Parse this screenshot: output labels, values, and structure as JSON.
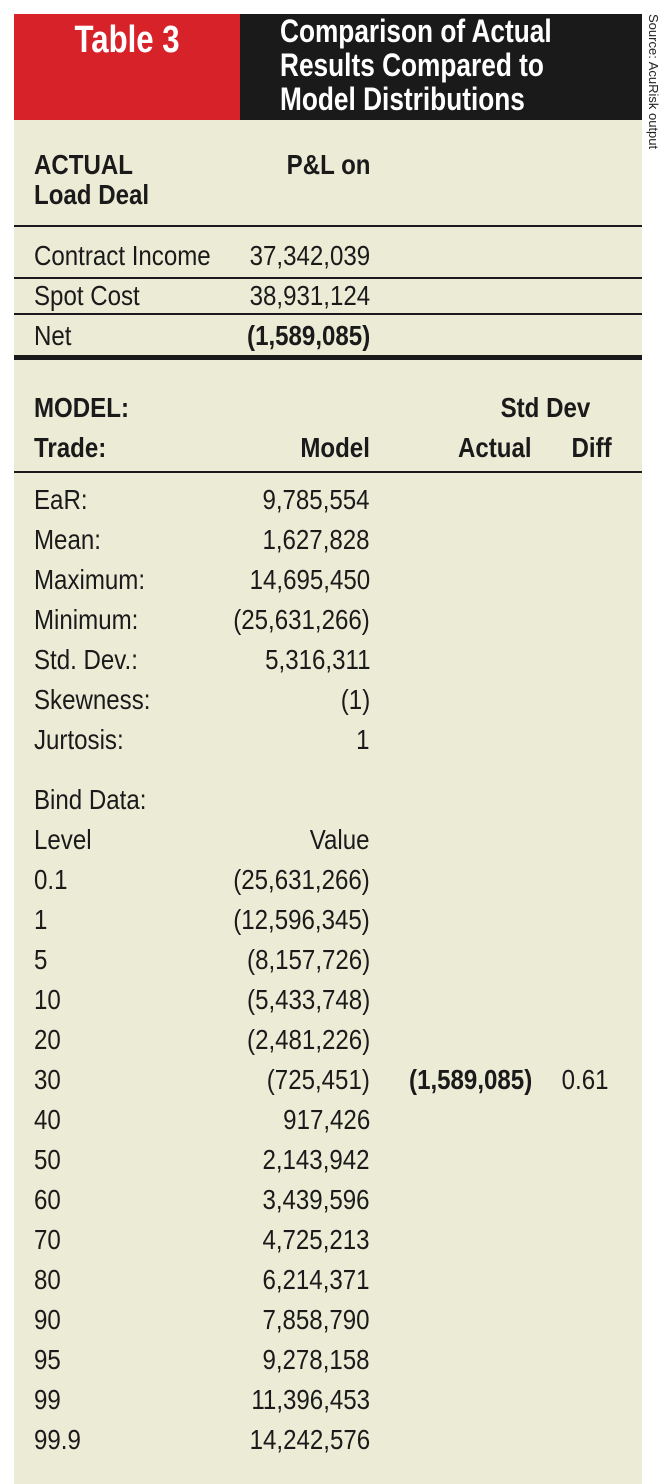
{
  "header": {
    "table_label": "Table 3",
    "title_lines": [
      "Comparison of Actual",
      "Results Compared to",
      "Model Distributions"
    ]
  },
  "source": "Source: AcuRisk output",
  "actual_section": {
    "heading_line1": "ACTUAL",
    "heading_line2": "Load Deal",
    "column_header": "P&L on",
    "rows": [
      {
        "label": "Contract Income",
        "value": "37,342,039"
      },
      {
        "label": "Spot Cost",
        "value": "38,931,124"
      },
      {
        "label": "Net",
        "value": "(1,589,085)"
      }
    ]
  },
  "model_section": {
    "heading_line1": "MODEL:",
    "heading_line2": "Trade:",
    "col_model": "Model",
    "col_actual": "Actual",
    "col_stddev_line1": "Std Dev",
    "col_stddev_line2": "Diff",
    "stats": [
      {
        "label": "EaR:",
        "value": "9,785,554"
      },
      {
        "label": "Mean:",
        "value": "1,627,828"
      },
      {
        "label": "Maximum:",
        "value": "14,695,450"
      },
      {
        "label": "Minimum:",
        "value": "(25,631,266)"
      },
      {
        "label": "Std. Dev.:",
        "value": "5,316,311"
      },
      {
        "label": "Skewness:",
        "value": "(1)"
      },
      {
        "label": "Jurtosis:",
        "value": "1"
      }
    ],
    "bind_label": "Bind Data:",
    "level_header": "Level",
    "value_header": "Value",
    "bind_rows": [
      {
        "level": "0.1",
        "value": "(25,631,266)",
        "actual": "",
        "diff": ""
      },
      {
        "level": "1",
        "value": "(12,596,345)",
        "actual": "",
        "diff": ""
      },
      {
        "level": "5",
        "value": "(8,157,726)",
        "actual": "",
        "diff": ""
      },
      {
        "level": "10",
        "value": "(5,433,748)",
        "actual": "",
        "diff": ""
      },
      {
        "level": "20",
        "value": "(2,481,226)",
        "actual": "",
        "diff": ""
      },
      {
        "level": "30",
        "value": "(725,451)",
        "actual": "(1,589,085)",
        "diff": "0.61"
      },
      {
        "level": "40",
        "value": "917,426",
        "actual": "",
        "diff": ""
      },
      {
        "level": "50",
        "value": "2,143,942",
        "actual": "",
        "diff": ""
      },
      {
        "level": "60",
        "value": "3,439,596",
        "actual": "",
        "diff": ""
      },
      {
        "level": "70",
        "value": "4,725,213",
        "actual": "",
        "diff": ""
      },
      {
        "level": "80",
        "value": "6,214,371",
        "actual": "",
        "diff": ""
      },
      {
        "level": "90",
        "value": "7,858,790",
        "actual": "",
        "diff": ""
      },
      {
        "level": "95",
        "value": "9,278,158",
        "actual": "",
        "diff": ""
      },
      {
        "level": "99",
        "value": "11,396,453",
        "actual": "",
        "diff": ""
      },
      {
        "level": "99.9",
        "value": "14,242,576",
        "actual": "",
        "diff": ""
      }
    ]
  }
}
